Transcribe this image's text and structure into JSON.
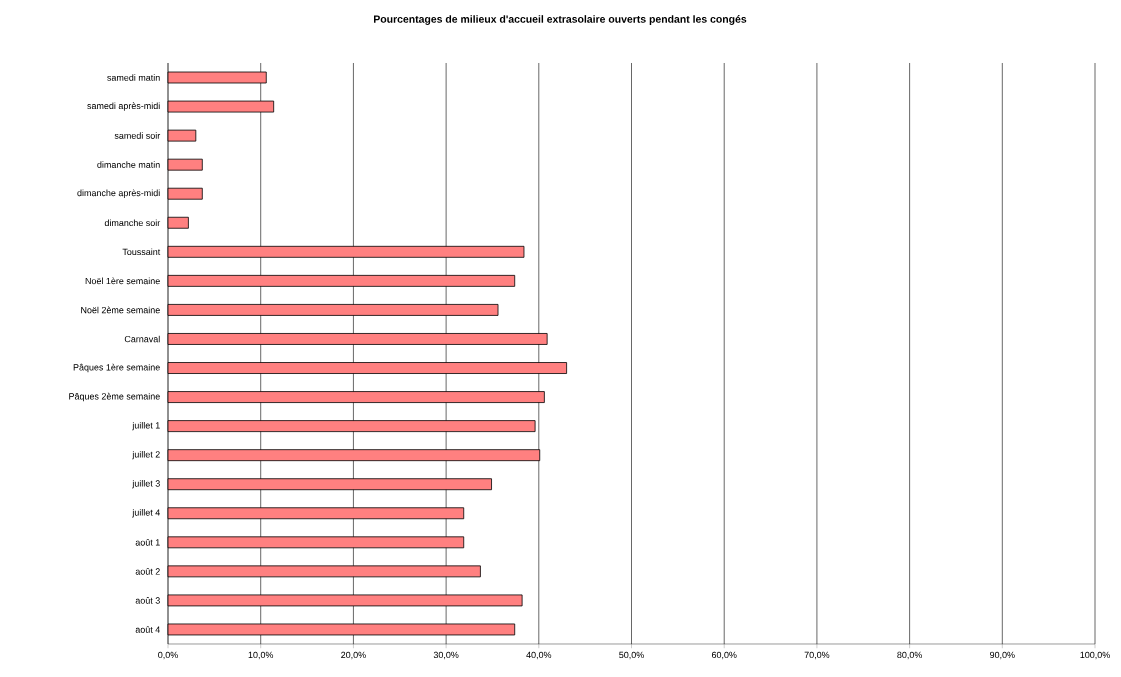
{
  "chart_data": {
    "type": "bar",
    "orientation": "horizontal",
    "title": "Pourcentages de milieux d'accueil extrasolaire ouverts pendant les congés",
    "categories": [
      "samedi matin",
      "samedi après-midi",
      "samedi soir",
      "dimanche matin",
      "dimanche après-midi",
      "dimanche soir",
      "Toussaint",
      "Noël 1ère semaine",
      "Noël 2ème semaine",
      "Carnaval",
      "Pâques 1ère semaine",
      "Pâques 2ème semaine",
      "juillet 1",
      "juillet 2",
      "juillet 3",
      "juillet 4",
      "août 1",
      "août 2",
      "août 3",
      "août 4"
    ],
    "values": [
      10.6,
      11.4,
      3.0,
      3.7,
      3.7,
      2.2,
      38.4,
      37.4,
      35.6,
      40.9,
      43.0,
      40.6,
      39.6,
      40.1,
      34.9,
      31.9,
      31.9,
      33.7,
      38.2,
      37.4
    ],
    "color": "#ff8080",
    "xlim": [
      0,
      100
    ],
    "xticks": [
      {
        "value": 0,
        "label": "0,0%"
      },
      {
        "value": 10,
        "label": "10,0%"
      },
      {
        "value": 20,
        "label": "20,0%"
      },
      {
        "value": 30,
        "label": "30,0%"
      },
      {
        "value": 40,
        "label": "40,0%"
      },
      {
        "value": 50,
        "label": "50,0%"
      },
      {
        "value": 60,
        "label": "60,0%"
      },
      {
        "value": 70,
        "label": "70,0%"
      },
      {
        "value": 80,
        "label": "80,0%"
      },
      {
        "value": 90,
        "label": "90,0%"
      },
      {
        "value": 100,
        "label": "100,0%"
      }
    ],
    "grid": "x"
  }
}
